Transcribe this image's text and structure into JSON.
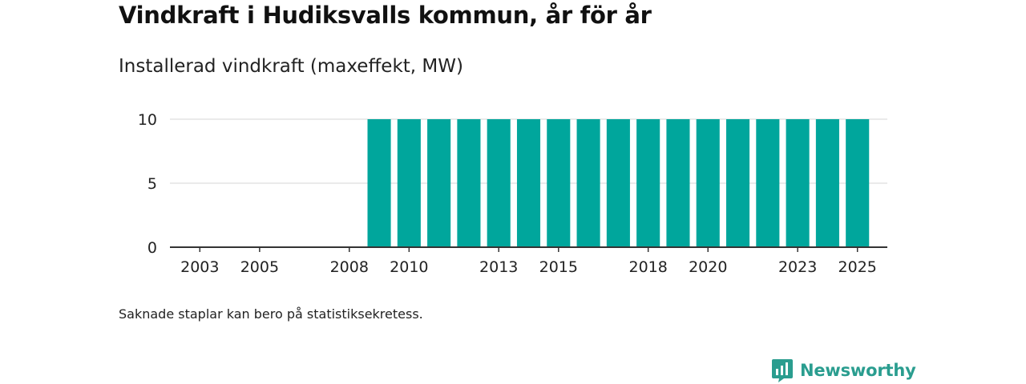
{
  "header": {
    "title": "Vindkraft i Hudiksvalls kommun, år för år",
    "subtitle": "Installerad vindkraft (maxeffekt, MW)"
  },
  "footer": {
    "note": "Saknade staplar kan bero på statistiksekretess.",
    "brand": "Newsworthy"
  },
  "colors": {
    "bar": "#00A69C",
    "grid": "#DDDDDD",
    "axis": "#333333",
    "brand": "#2A9D8F"
  },
  "chart_data": {
    "type": "bar",
    "title": "Vindkraft i Hudiksvalls kommun, år för år",
    "subtitle": "Installerad vindkraft (maxeffekt, MW)",
    "xlabel": "",
    "ylabel": "",
    "ylim": [
      0,
      10
    ],
    "yticks": [
      0,
      5,
      10
    ],
    "grid": true,
    "x_domain": [
      2002,
      2026
    ],
    "xticks": [
      2003,
      2005,
      2008,
      2010,
      2013,
      2015,
      2018,
      2020,
      2023,
      2025
    ],
    "categories": [
      2009,
      2010,
      2011,
      2012,
      2013,
      2014,
      2015,
      2016,
      2017,
      2018,
      2019,
      2020,
      2021,
      2022,
      2023,
      2024,
      2025
    ],
    "values": [
      10,
      10,
      10,
      10,
      10,
      10,
      10,
      10,
      10,
      10,
      10,
      10,
      10,
      10,
      10,
      10,
      10
    ]
  }
}
